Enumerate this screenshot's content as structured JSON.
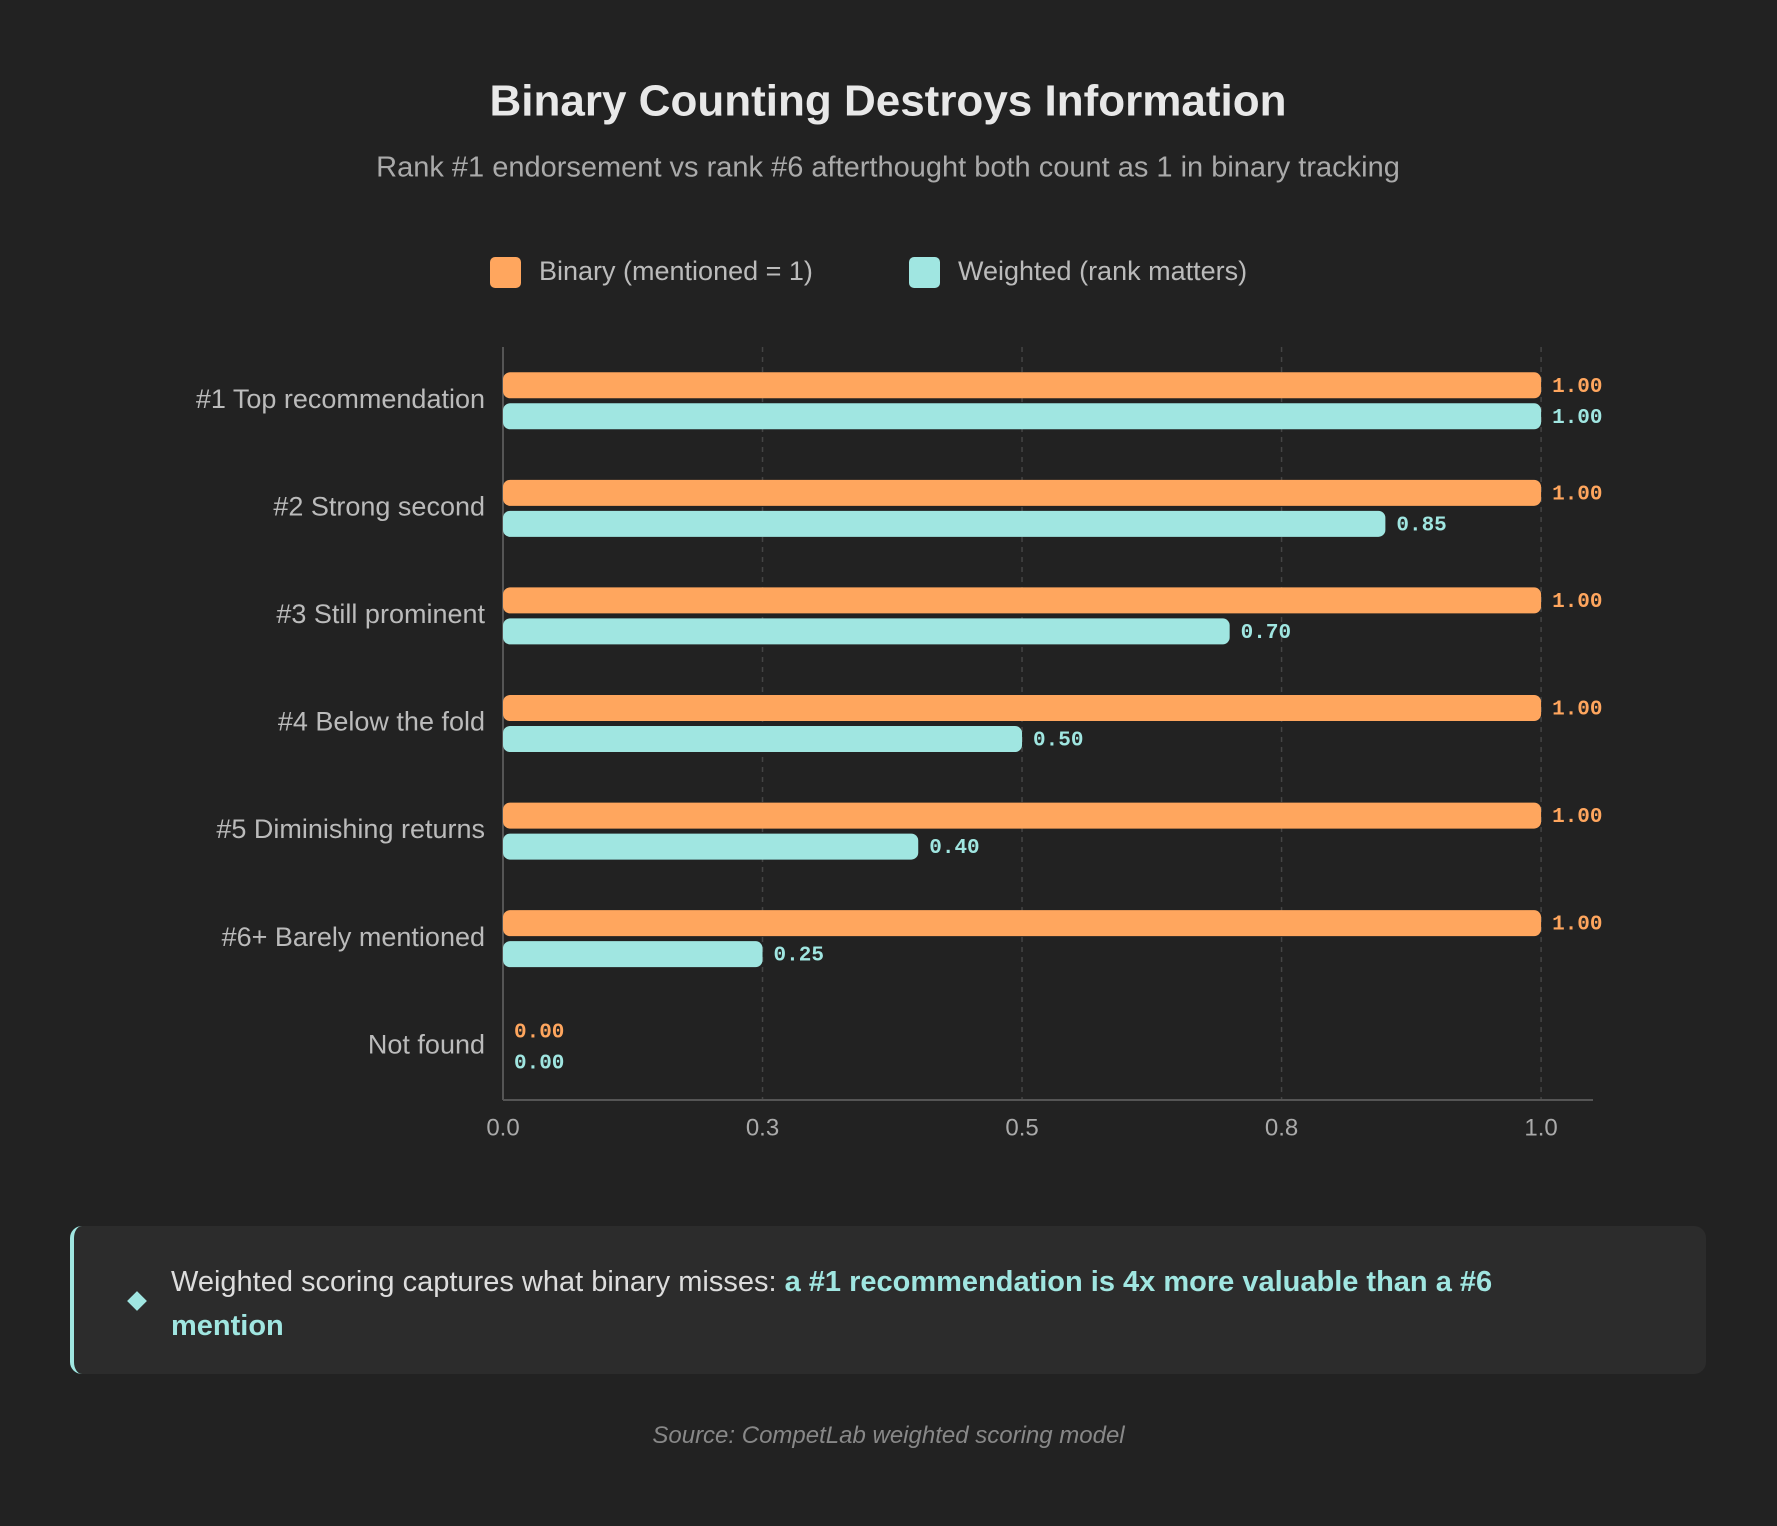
{
  "chart_data": {
    "type": "barh",
    "title": "Binary Counting Destroys Information",
    "subtitle": "Rank #1 endorsement vs rank #6 afterthought both count as 1 in binary tracking",
    "categories": [
      "#1 Top recommendation",
      "#2 Strong second",
      "#3 Still prominent",
      "#4 Below the fold",
      "#5 Diminishing returns",
      "#6+ Barely mentioned",
      "Not found"
    ],
    "series": [
      {
        "name": "Binary (mentioned = 1)",
        "color": "#ffa65e",
        "values": [
          1,
          1,
          1,
          1,
          1,
          1,
          0
        ],
        "value_labels": [
          "1.00",
          "1.00",
          "1.00",
          "1.00",
          "1.00",
          "1.00",
          "0.00"
        ]
      },
      {
        "name": "Weighted (rank matters)",
        "color": "#a0e6e1",
        "values": [
          1,
          0.85,
          0.7,
          0.5,
          0.4,
          0.25,
          0
        ],
        "value_labels": [
          "1.00",
          "0.85",
          "0.70",
          "0.50",
          "0.40",
          "0.25",
          "0.00"
        ]
      }
    ],
    "xlim": [
      0,
      1.05
    ],
    "xticks": [
      {
        "value": 0,
        "label": "0.0"
      },
      {
        "value": 0.25,
        "label": "0.3"
      },
      {
        "value": 0.5,
        "label": "0.5"
      },
      {
        "value": 0.75,
        "label": "0.8"
      },
      {
        "value": 1,
        "label": "1.0"
      }
    ],
    "grid": true,
    "legend": "top"
  },
  "callout": {
    "text": "Weighted scoring captures what binary misses: ",
    "highlight": "a #1 recommendation is 4x more valuable than a #6 mention"
  },
  "source": "Source: CompetLab weighted scoring model"
}
